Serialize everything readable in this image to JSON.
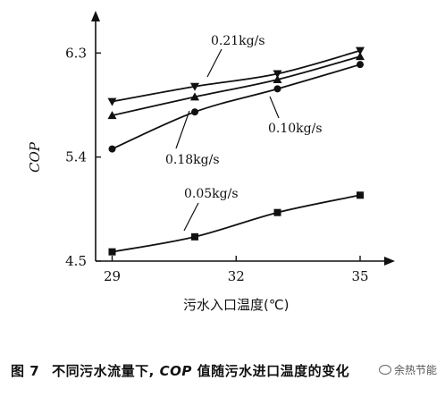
{
  "chart_data": {
    "type": "line",
    "title": "",
    "xlabel": "污水入口温度(℃)",
    "ylabel": "COP",
    "xlim": [
      28.6,
      35.8
    ],
    "ylim": [
      4.5,
      6.65
    ],
    "x_ticks": [
      "29",
      "32",
      "35"
    ],
    "y_ticks": [
      "4.5",
      "5.4",
      "6.3"
    ],
    "grid": false,
    "legend": "none",
    "series": [
      {
        "name": "0.21kg/s",
        "marker": "triangle-down",
        "x": [
          29,
          31,
          33,
          35
        ],
        "y": [
          5.88,
          6.01,
          6.12,
          6.32
        ]
      },
      {
        "name": "0.18kg/s",
        "marker": "triangle-up",
        "x": [
          29,
          31,
          33,
          35
        ],
        "y": [
          5.76,
          5.92,
          6.07,
          6.27
        ]
      },
      {
        "name": "0.10kg/s",
        "marker": "circle",
        "x": [
          29,
          31,
          33,
          35
        ],
        "y": [
          5.47,
          5.79,
          5.99,
          6.2
        ]
      },
      {
        "name": "0.05kg/s",
        "marker": "square",
        "x": [
          29,
          31,
          33,
          35
        ],
        "y": [
          4.58,
          4.71,
          4.92,
          5.07
        ]
      }
    ]
  },
  "caption": {
    "figure_number": "图 7",
    "text_before": "不同污水流量下, ",
    "cop": "COP",
    "text_after": " 值随污水进口温度的变化"
  },
  "watermark": {
    "text": "余热节能"
  }
}
